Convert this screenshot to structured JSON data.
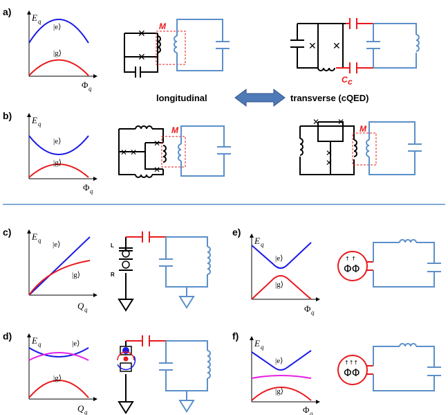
{
  "panels": {
    "a": "a)",
    "b": "b)",
    "c": "c)",
    "d": "d)",
    "e": "e)",
    "f": "f)"
  },
  "axes": {
    "energy": "E",
    "energy_sub": "q",
    "flux": "Φ",
    "flux_sub": "q",
    "charge": "Q",
    "charge_sub": "q"
  },
  "states": {
    "excited": "|e⟩",
    "ground": "|g⟩"
  },
  "labels": {
    "mutual": "M",
    "coupling_cap": "C",
    "coupling_cap_sub": "c",
    "longitudinal": "longitudinal",
    "transverse": "transverse (cQED)",
    "left": "L",
    "right": "R"
  },
  "colors": {
    "excited_curve": "#1a1ae6",
    "ground_curve": "#e8191c",
    "middle_curve": "#e620e6",
    "resonator": "#5b8fc9",
    "arrow": "#4f7ab8",
    "divider": "#5b8fc9"
  }
}
